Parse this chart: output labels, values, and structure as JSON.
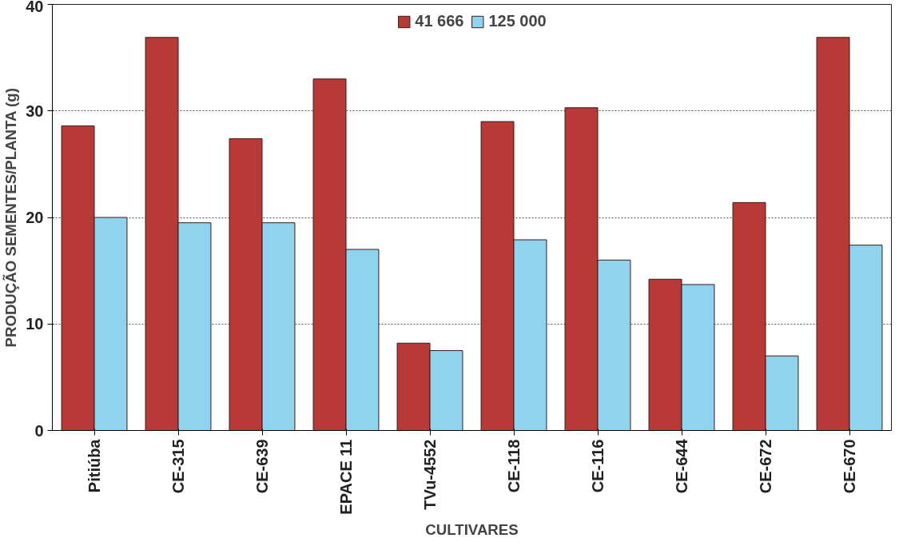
{
  "chart_data": {
    "type": "bar",
    "xlabel": "CULTIVARES",
    "ylabel": "PRODUÇÃO SEMENTES/PLANTA (g)",
    "categories": [
      "Pitiúba",
      "CE-315",
      "CE-639",
      "EPACE 11",
      "TVu-4552",
      "CE-118",
      "CE-116",
      "CE-644",
      "CE-672",
      "CE-670"
    ],
    "series": [
      {
        "name": "41 666",
        "color": "#b83a36",
        "values": [
          28.6,
          36.9,
          27.4,
          33.0,
          8.2,
          29.0,
          30.3,
          14.2,
          21.4,
          36.9
        ]
      },
      {
        "name": "125 000",
        "color": "#8fd3ef",
        "values": [
          20.0,
          19.5,
          19.5,
          17.0,
          7.5,
          17.9,
          16.0,
          13.7,
          7.0,
          17.4
        ]
      }
    ],
    "ylim": [
      0,
      40
    ],
    "yticks": [
      0,
      10,
      20,
      30,
      40
    ],
    "grid": "y",
    "legend": "top"
  }
}
